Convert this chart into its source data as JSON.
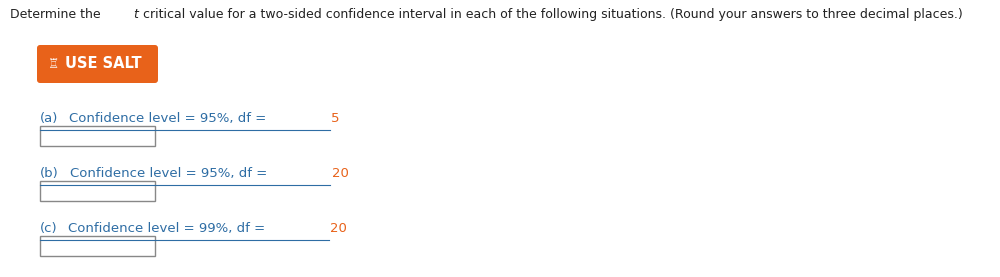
{
  "prefix": "Determine the ",
  "italic_word": "t",
  "suffix": " critical value for a two-sided confidence interval in each of the following situations. (Round your answers to three decimal places.)",
  "button_text": "USE SALT",
  "button_color": "#E8621A",
  "button_text_color": "#ffffff",
  "parts": [
    {
      "label": "(a)",
      "main_text": "Confidence level = 95%, df = ",
      "highlight": "5"
    },
    {
      "label": "(b)",
      "main_text": "Confidence level = 95%, df = ",
      "highlight": "20"
    },
    {
      "label": "(c)",
      "main_text": "Confidence level = 99%, df = ",
      "highlight": "20"
    }
  ],
  "bg_color": "#ffffff",
  "text_color_blue": "#2e6da4",
  "text_color_orange": "#E8621A",
  "text_color_black": "#222222",
  "title_font_size": 9.0,
  "label_font_size": 9.5,
  "button_font_size": 10.5,
  "fig_width": 10.0,
  "fig_height": 2.77,
  "dpi": 100
}
